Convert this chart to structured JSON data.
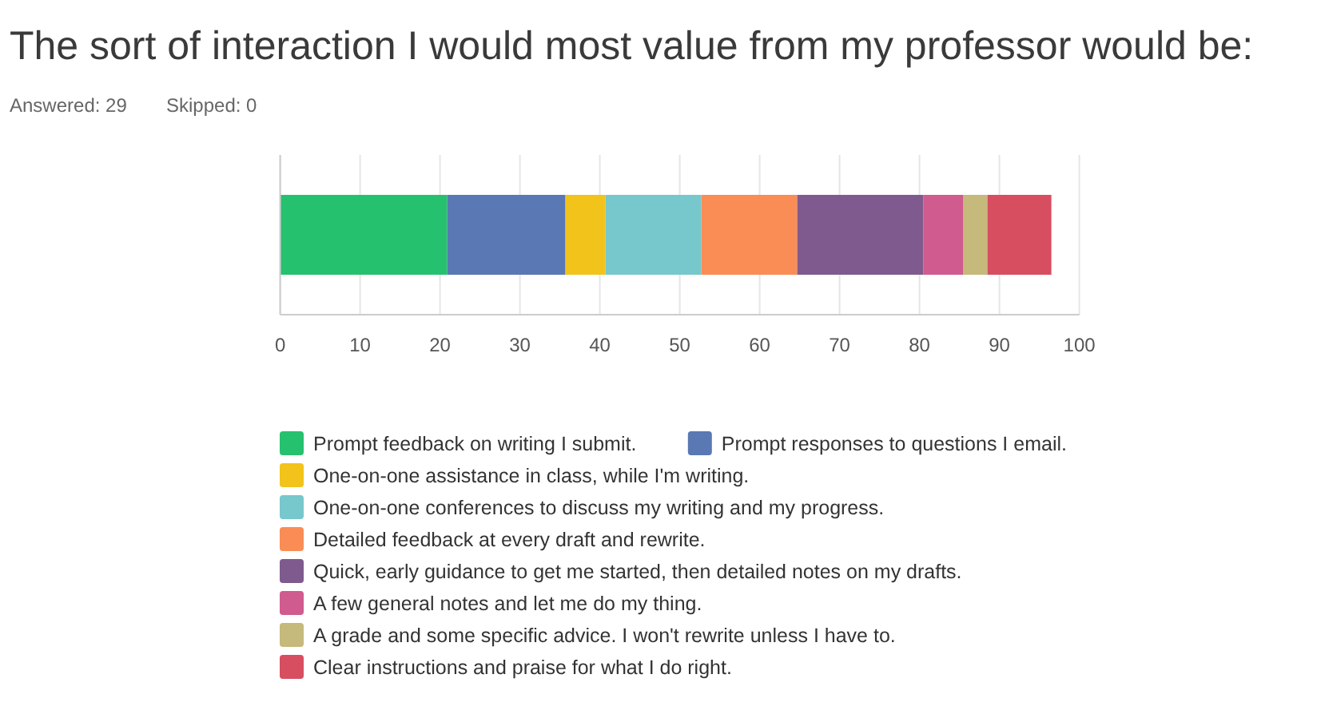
{
  "chart_data": {
    "type": "bar",
    "orientation": "horizontal",
    "stacked": true,
    "title": "The sort of interaction I would most value from my professor would be:",
    "annotations": [
      "Answered: 29",
      "Skipped: 0"
    ],
    "categories": [
      null
    ],
    "series": [
      {
        "name": "Prompt feedback on writing I submit.",
        "color": "#25c16f",
        "values": [
          20.9
        ]
      },
      {
        "name": "Prompt responses to questions I email.",
        "color": "#5a78b4",
        "values": [
          14.8
        ]
      },
      {
        "name": "One-on-one assistance in class, while I'm writing.",
        "color": "#f2c31a",
        "values": [
          5
        ]
      },
      {
        "name": "One-on-one conferences to discuss my writing and my progress.",
        "color": "#76c8cc",
        "values": [
          12
        ]
      },
      {
        "name": "Detailed feedback at every draft and rewrite.",
        "color": "#f98d55",
        "values": [
          12
        ]
      },
      {
        "name": "Quick, early guidance to get me started, then detailed notes on my drafts.",
        "color": "#7f5a8e",
        "values": [
          15.8
        ]
      },
      {
        "name": "A few general notes and let me do my thing.",
        "color": "#d05b8e",
        "values": [
          5
        ]
      },
      {
        "name": "A grade and some specific advice. I won't rewrite unless I have to.",
        "color": "#c5b97b",
        "values": [
          3
        ]
      },
      {
        "name": "Clear instructions and praise for what I do right.",
        "color": "#d74e60",
        "values": [
          8
        ]
      }
    ],
    "xlim": [
      0,
      100
    ],
    "xticks": [
      0,
      10,
      20,
      30,
      40,
      50,
      60,
      70,
      80,
      90,
      100
    ],
    "grid": "x",
    "legend": "bottom"
  }
}
